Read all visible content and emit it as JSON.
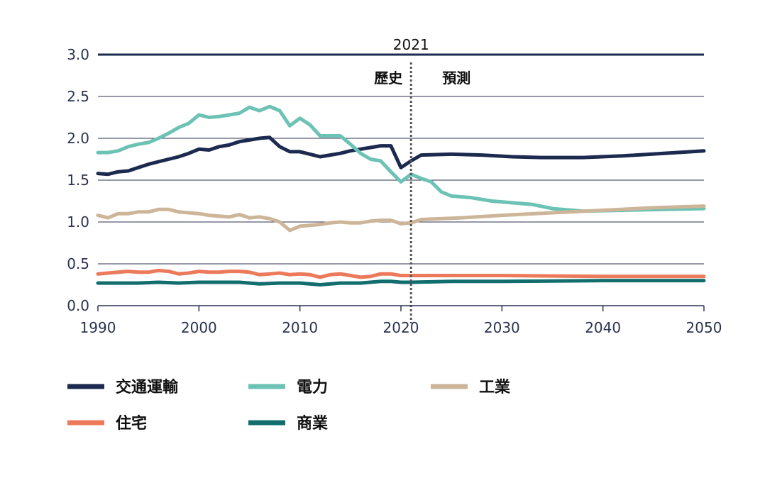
{
  "chart_data": {
    "type": "line",
    "title": "",
    "xlabel": "",
    "ylabel": "",
    "xlim": [
      1990,
      2050
    ],
    "ylim": [
      0,
      3.0
    ],
    "x_ticks": [
      "1990",
      "2000",
      "2010",
      "2020",
      "2030",
      "2040",
      "2050"
    ],
    "y_ticks": [
      "0.0",
      "0.5",
      "1.0",
      "1.5",
      "2.0",
      "2.5",
      "3.0"
    ],
    "grid": "horizontal",
    "divider": {
      "x": 2021,
      "label": "2021",
      "left_label": "歷史",
      "right_label": "預測"
    },
    "legend_position": "bottom",
    "series": [
      {
        "name": "交通運輸",
        "color": "#1b2a4e",
        "points": [
          [
            1990,
            1.58
          ],
          [
            1991,
            1.57
          ],
          [
            1992,
            1.6
          ],
          [
            1993,
            1.61
          ],
          [
            1994,
            1.65
          ],
          [
            1995,
            1.69
          ],
          [
            1996,
            1.72
          ],
          [
            1997,
            1.75
          ],
          [
            1998,
            1.78
          ],
          [
            1999,
            1.82
          ],
          [
            2000,
            1.87
          ],
          [
            2001,
            1.86
          ],
          [
            2002,
            1.9
          ],
          [
            2003,
            1.92
          ],
          [
            2004,
            1.96
          ],
          [
            2005,
            1.98
          ],
          [
            2006,
            2.0
          ],
          [
            2007,
            2.01
          ],
          [
            2008,
            1.9
          ],
          [
            2009,
            1.84
          ],
          [
            2010,
            1.84
          ],
          [
            2011,
            1.81
          ],
          [
            2012,
            1.78
          ],
          [
            2013,
            1.8
          ],
          [
            2014,
            1.82
          ],
          [
            2015,
            1.85
          ],
          [
            2016,
            1.87
          ],
          [
            2017,
            1.89
          ],
          [
            2018,
            1.91
          ],
          [
            2019,
            1.91
          ],
          [
            2020,
            1.65
          ],
          [
            2021,
            1.73
          ],
          [
            2022,
            1.8
          ],
          [
            2025,
            1.81
          ],
          [
            2028,
            1.8
          ],
          [
            2031,
            1.78
          ],
          [
            2034,
            1.77
          ],
          [
            2038,
            1.77
          ],
          [
            2042,
            1.79
          ],
          [
            2046,
            1.82
          ],
          [
            2050,
            1.85
          ]
        ]
      },
      {
        "name": "電力",
        "color": "#6cc2b4",
        "points": [
          [
            1990,
            1.83
          ],
          [
            1991,
            1.83
          ],
          [
            1992,
            1.85
          ],
          [
            1993,
            1.9
          ],
          [
            1994,
            1.93
          ],
          [
            1995,
            1.95
          ],
          [
            1996,
            2.0
          ],
          [
            1997,
            2.06
          ],
          [
            1998,
            2.13
          ],
          [
            1999,
            2.18
          ],
          [
            2000,
            2.28
          ],
          [
            2001,
            2.25
          ],
          [
            2002,
            2.26
          ],
          [
            2003,
            2.28
          ],
          [
            2004,
            2.3
          ],
          [
            2005,
            2.37
          ],
          [
            2006,
            2.33
          ],
          [
            2007,
            2.38
          ],
          [
            2008,
            2.33
          ],
          [
            2009,
            2.15
          ],
          [
            2010,
            2.24
          ],
          [
            2011,
            2.16
          ],
          [
            2012,
            2.03
          ],
          [
            2013,
            2.03
          ],
          [
            2014,
            2.03
          ],
          [
            2015,
            1.93
          ],
          [
            2016,
            1.82
          ],
          [
            2017,
            1.75
          ],
          [
            2018,
            1.73
          ],
          [
            2019,
            1.6
          ],
          [
            2020,
            1.48
          ],
          [
            2021,
            1.57
          ],
          [
            2022,
            1.52
          ],
          [
            2023,
            1.48
          ],
          [
            2024,
            1.36
          ],
          [
            2025,
            1.31
          ],
          [
            2027,
            1.29
          ],
          [
            2029,
            1.25
          ],
          [
            2031,
            1.23
          ],
          [
            2033,
            1.21
          ],
          [
            2035,
            1.16
          ],
          [
            2038,
            1.13
          ],
          [
            2042,
            1.14
          ],
          [
            2046,
            1.15
          ],
          [
            2050,
            1.16
          ]
        ]
      },
      {
        "name": "工業",
        "color": "#cdb59a",
        "points": [
          [
            1990,
            1.08
          ],
          [
            1991,
            1.05
          ],
          [
            1992,
            1.1
          ],
          [
            1993,
            1.1
          ],
          [
            1994,
            1.12
          ],
          [
            1995,
            1.12
          ],
          [
            1996,
            1.15
          ],
          [
            1997,
            1.15
          ],
          [
            1998,
            1.12
          ],
          [
            1999,
            1.11
          ],
          [
            2000,
            1.1
          ],
          [
            2001,
            1.08
          ],
          [
            2002,
            1.07
          ],
          [
            2003,
            1.06
          ],
          [
            2004,
            1.09
          ],
          [
            2005,
            1.05
          ],
          [
            2006,
            1.06
          ],
          [
            2007,
            1.04
          ],
          [
            2008,
            1.0
          ],
          [
            2009,
            0.9
          ],
          [
            2010,
            0.95
          ],
          [
            2011,
            0.96
          ],
          [
            2012,
            0.97
          ],
          [
            2013,
            0.99
          ],
          [
            2014,
            1.0
          ],
          [
            2015,
            0.99
          ],
          [
            2016,
            0.99
          ],
          [
            2017,
            1.01
          ],
          [
            2018,
            1.02
          ],
          [
            2019,
            1.02
          ],
          [
            2020,
            0.98
          ],
          [
            2021,
            0.99
          ],
          [
            2022,
            1.03
          ],
          [
            2026,
            1.05
          ],
          [
            2030,
            1.08
          ],
          [
            2035,
            1.11
          ],
          [
            2040,
            1.14
          ],
          [
            2045,
            1.17
          ],
          [
            2050,
            1.19
          ]
        ]
      },
      {
        "name": "住宅",
        "color": "#ec7a5a",
        "points": [
          [
            1990,
            0.38
          ],
          [
            1991,
            0.39
          ],
          [
            1992,
            0.4
          ],
          [
            1993,
            0.41
          ],
          [
            1994,
            0.4
          ],
          [
            1995,
            0.4
          ],
          [
            1996,
            0.42
          ],
          [
            1997,
            0.41
          ],
          [
            1998,
            0.38
          ],
          [
            1999,
            0.39
          ],
          [
            2000,
            0.41
          ],
          [
            2001,
            0.4
          ],
          [
            2002,
            0.4
          ],
          [
            2003,
            0.41
          ],
          [
            2004,
            0.41
          ],
          [
            2005,
            0.4
          ],
          [
            2006,
            0.37
          ],
          [
            2007,
            0.38
          ],
          [
            2008,
            0.39
          ],
          [
            2009,
            0.37
          ],
          [
            2010,
            0.38
          ],
          [
            2011,
            0.37
          ],
          [
            2012,
            0.34
          ],
          [
            2013,
            0.37
          ],
          [
            2014,
            0.38
          ],
          [
            2015,
            0.36
          ],
          [
            2016,
            0.34
          ],
          [
            2017,
            0.35
          ],
          [
            2018,
            0.38
          ],
          [
            2019,
            0.38
          ],
          [
            2020,
            0.36
          ],
          [
            2021,
            0.36
          ],
          [
            2025,
            0.36
          ],
          [
            2030,
            0.36
          ],
          [
            2040,
            0.35
          ],
          [
            2050,
            0.35
          ]
        ]
      },
      {
        "name": "商業",
        "color": "#126e6e",
        "points": [
          [
            1990,
            0.27
          ],
          [
            1992,
            0.27
          ],
          [
            1994,
            0.27
          ],
          [
            1996,
            0.28
          ],
          [
            1998,
            0.27
          ],
          [
            2000,
            0.28
          ],
          [
            2002,
            0.28
          ],
          [
            2004,
            0.28
          ],
          [
            2006,
            0.26
          ],
          [
            2008,
            0.27
          ],
          [
            2010,
            0.27
          ],
          [
            2012,
            0.25
          ],
          [
            2014,
            0.27
          ],
          [
            2016,
            0.27
          ],
          [
            2018,
            0.29
          ],
          [
            2019,
            0.29
          ],
          [
            2020,
            0.28
          ],
          [
            2021,
            0.28
          ],
          [
            2025,
            0.29
          ],
          [
            2030,
            0.29
          ],
          [
            2040,
            0.3
          ],
          [
            2050,
            0.3
          ]
        ]
      }
    ]
  }
}
